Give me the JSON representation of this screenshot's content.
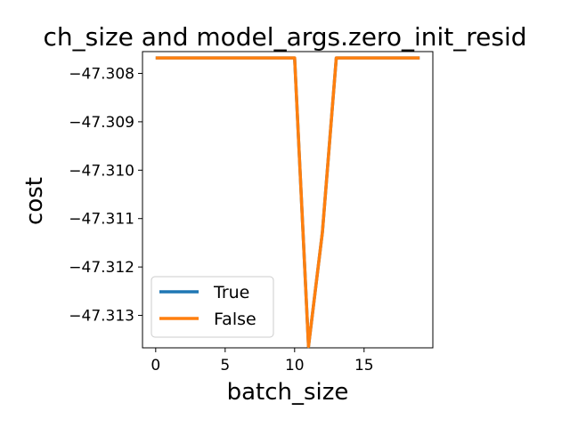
{
  "chart_data": {
    "type": "line",
    "title": "ch_size and model_args.zero_init_resid",
    "xlabel": "batch_size",
    "ylabel": "cost",
    "xlim": [
      -0.95,
      19.95
    ],
    "ylim": [
      -47.31367,
      -47.30755
    ],
    "x_ticks": [
      0,
      5,
      10,
      15
    ],
    "x_tick_labels": [
      "0",
      "5",
      "10",
      "15"
    ],
    "y_ticks": [
      -47.308,
      -47.309,
      -47.31,
      -47.311,
      -47.312,
      -47.313
    ],
    "y_tick_labels": [
      "−47.308",
      "−47.309",
      "−47.310",
      "−47.311",
      "−47.312",
      "−47.313"
    ],
    "x": [
      0,
      1,
      2,
      3,
      4,
      5,
      6,
      7,
      8,
      9,
      10,
      11,
      12,
      13,
      14,
      15,
      16,
      17,
      18,
      19
    ],
    "series": [
      {
        "name": "True",
        "color": "#1f77b4",
        "values": [
          -47.30768,
          -47.30768,
          -47.30768,
          -47.30768,
          -47.30768,
          -47.30768,
          -47.30768,
          -47.30768,
          -47.30768,
          -47.30768,
          -47.30768,
          -47.31364,
          -47.31128,
          -47.30768,
          -47.30768,
          -47.30768,
          -47.30768,
          -47.30768,
          -47.30768,
          -47.30768
        ]
      },
      {
        "name": "False",
        "color": "#ff7f0e",
        "values": [
          -47.30768,
          -47.30768,
          -47.30768,
          -47.30768,
          -47.30768,
          -47.30768,
          -47.30768,
          -47.30768,
          -47.30768,
          -47.30768,
          -47.30768,
          -47.31364,
          -47.31128,
          -47.30768,
          -47.30768,
          -47.30768,
          -47.30768,
          -47.30768,
          -47.30768,
          -47.30768
        ]
      }
    ],
    "legend_position": "lower-left",
    "grid": false
  }
}
